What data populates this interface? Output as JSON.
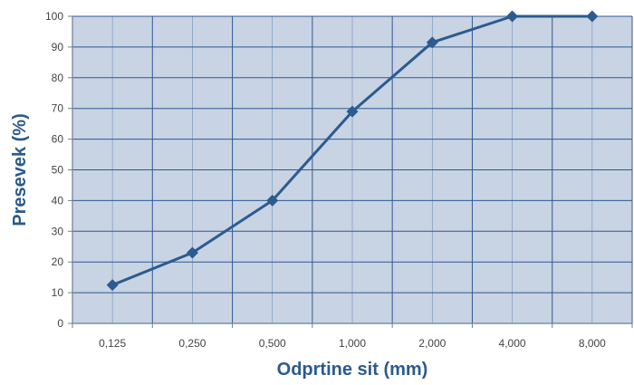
{
  "chart_data": {
    "type": "line",
    "categories": [
      "0,125",
      "0,250",
      "0,500",
      "1,000",
      "2,000",
      "4,000",
      "8,000"
    ],
    "values": [
      12.5,
      23,
      40,
      69,
      91.5,
      100,
      100
    ],
    "xlabel": "Odprtine sit (mm)",
    "ylabel": "Presevek (%)",
    "ylim": [
      0,
      100
    ],
    "yticks": [
      "0",
      "10",
      "20",
      "30",
      "40",
      "50",
      "60",
      "70",
      "80",
      "90",
      "100"
    ],
    "grid": true,
    "colors": {
      "plot_bg": "#c8d3e3",
      "grid": "#2f5a92",
      "line": "#2b5b8f",
      "title": "#2b5b8a"
    }
  }
}
